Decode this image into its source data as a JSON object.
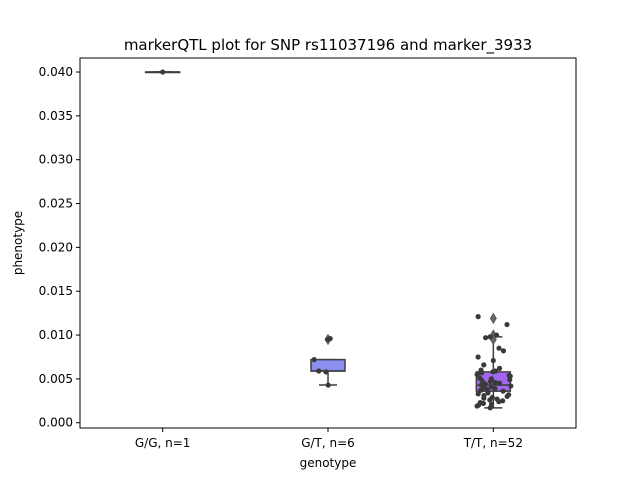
{
  "chart_data": {
    "type": "box",
    "title": "markerQTL plot for SNP rs11037196 and marker_3933",
    "xlabel": "genotype",
    "ylabel": "phenotype",
    "ylim": [
      -0.0006,
      0.0416
    ],
    "yticks": [
      0.0,
      0.005,
      0.01,
      0.015,
      0.02,
      0.025,
      0.03,
      0.035,
      0.04
    ],
    "ytick_labels": [
      "0.000",
      "0.005",
      "0.010",
      "0.015",
      "0.020",
      "0.025",
      "0.030",
      "0.035",
      "0.040"
    ],
    "grid": false,
    "categories": [
      "G/G, n=1",
      "G/T, n=6",
      "T/T, n=52"
    ],
    "boxes": [
      {
        "color": "#8a8ff0",
        "q1": 0.04,
        "median": 0.04,
        "q3": 0.04,
        "whisker_low": 0.04,
        "whisker_high": 0.04,
        "outliers": []
      },
      {
        "color": "#8a8ff0",
        "q1": 0.0059,
        "median": 0.0059,
        "q3": 0.0072,
        "whisker_low": 0.0043,
        "whisker_high": 0.0072,
        "outliers": [
          0.0095
        ]
      },
      {
        "color": "#a366f0",
        "q1": 0.0036,
        "median": 0.0043,
        "q3": 0.0058,
        "whisker_low": 0.0017,
        "whisker_high": 0.0098,
        "outliers": [
          0.0119,
          0.01,
          0.0095
        ]
      }
    ],
    "points": [
      [
        0.04
      ],
      [
        0.0095,
        0.0096,
        0.0072,
        0.0059,
        0.0058,
        0.0043
      ],
      [
        0.0121,
        0.0112,
        0.01,
        0.0098,
        0.0097,
        0.0082,
        0.0085,
        0.0075,
        0.0071,
        0.0066,
        0.0062,
        0.006,
        0.0059,
        0.0058,
        0.0057,
        0.0055,
        0.0054,
        0.0053,
        0.0051,
        0.005,
        0.0049,
        0.0048,
        0.0047,
        0.0046,
        0.0045,
        0.0044,
        0.0043,
        0.0042,
        0.0041,
        0.004,
        0.0039,
        0.0038,
        0.0037,
        0.0036,
        0.0035,
        0.0034,
        0.0033,
        0.0032,
        0.0031,
        0.003,
        0.0029,
        0.0028,
        0.0027,
        0.0026,
        0.0025,
        0.0024,
        0.0023,
        0.0022,
        0.0021,
        0.002,
        0.0019,
        0.0017
      ]
    ]
  }
}
